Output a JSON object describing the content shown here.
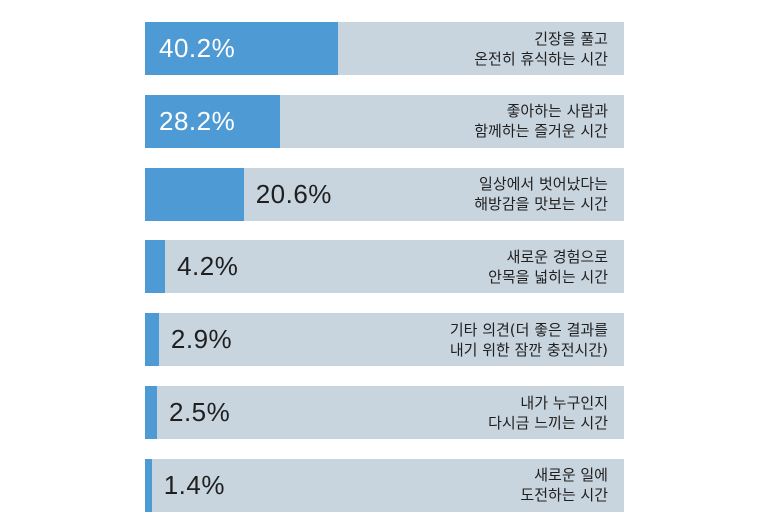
{
  "chart_data": {
    "type": "bar",
    "orientation": "horizontal",
    "categories": [
      [
        "긴장을 풀고",
        "온전히 휴식하는 시간"
      ],
      [
        "좋아하는 사람과",
        "함께하는 즐거운 시간"
      ],
      [
        "일상에서 벗어났다는",
        "해방감을 맛보는 시간"
      ],
      [
        "새로운 경험으로",
        "안목을 넓히는 시간"
      ],
      [
        "기타 의견(더 좋은 결과를",
        "내기 위한 잠깐 충전시간)"
      ],
      [
        "내가 누구인지",
        "다시금 느끼는 시간"
      ],
      [
        "새로운 일에",
        "도전하는 시간"
      ]
    ],
    "values": [
      40.2,
      28.2,
      20.6,
      4.2,
      2.9,
      2.5,
      1.4
    ],
    "value_labels": [
      "40.2%",
      "28.2%",
      "20.6%",
      "4.2%",
      "2.9%",
      "2.5%",
      "1.4%"
    ],
    "xlim": [
      0,
      100
    ],
    "colors": {
      "fill": "#4e9ad5",
      "track": "#c8d4de"
    }
  }
}
